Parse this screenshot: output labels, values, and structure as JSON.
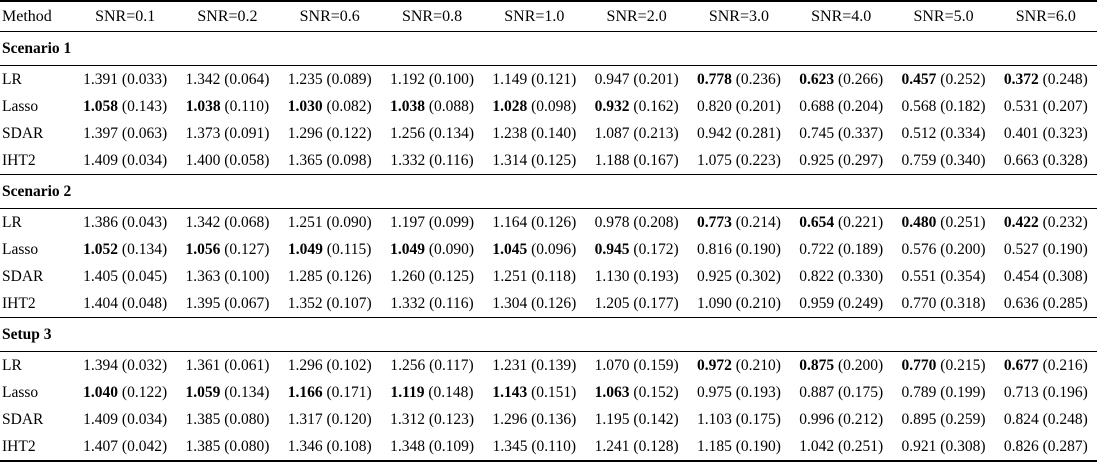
{
  "accent_colors": {
    "text": "#000000",
    "background": "#ffffff",
    "rule": "#000000"
  },
  "table": {
    "columns": [
      "Method",
      "SNR=0.1",
      "SNR=0.2",
      "SNR=0.6",
      "SNR=0.8",
      "SNR=1.0",
      "SNR=2.0",
      "SNR=3.0",
      "SNR=4.0",
      "SNR=5.0",
      "SNR=6.0"
    ],
    "sections": [
      {
        "title": "Scenario 1",
        "rows": [
          {
            "method": "LR",
            "cells": [
              {
                "mean": "1.391",
                "std": "(0.033)",
                "bold": false
              },
              {
                "mean": "1.342",
                "std": "(0.064)",
                "bold": false
              },
              {
                "mean": "1.235",
                "std": "(0.089)",
                "bold": false
              },
              {
                "mean": "1.192",
                "std": "(0.100)",
                "bold": false
              },
              {
                "mean": "1.149",
                "std": "(0.121)",
                "bold": false
              },
              {
                "mean": "0.947",
                "std": "(0.201)",
                "bold": false
              },
              {
                "mean": "0.778",
                "std": "(0.236)",
                "bold": true
              },
              {
                "mean": "0.623",
                "std": "(0.266)",
                "bold": true
              },
              {
                "mean": "0.457",
                "std": "(0.252)",
                "bold": true
              },
              {
                "mean": "0.372",
                "std": "(0.248)",
                "bold": true
              }
            ]
          },
          {
            "method": "Lasso",
            "cells": [
              {
                "mean": "1.058",
                "std": "(0.143)",
                "bold": true
              },
              {
                "mean": "1.038",
                "std": "(0.110)",
                "bold": true
              },
              {
                "mean": "1.030",
                "std": "(0.082)",
                "bold": true
              },
              {
                "mean": "1.038",
                "std": "(0.088)",
                "bold": true
              },
              {
                "mean": "1.028",
                "std": "(0.098)",
                "bold": true
              },
              {
                "mean": "0.932",
                "std": "(0.162)",
                "bold": true
              },
              {
                "mean": "0.820",
                "std": "(0.201)",
                "bold": false
              },
              {
                "mean": "0.688",
                "std": "(0.204)",
                "bold": false
              },
              {
                "mean": "0.568",
                "std": "(0.182)",
                "bold": false
              },
              {
                "mean": "0.531",
                "std": "(0.207)",
                "bold": false
              }
            ]
          },
          {
            "method": "SDAR",
            "cells": [
              {
                "mean": "1.397",
                "std": "(0.063)",
                "bold": false
              },
              {
                "mean": "1.373",
                "std": "(0.091)",
                "bold": false
              },
              {
                "mean": "1.296",
                "std": "(0.122)",
                "bold": false
              },
              {
                "mean": "1.256",
                "std": "(0.134)",
                "bold": false
              },
              {
                "mean": "1.238",
                "std": "(0.140)",
                "bold": false
              },
              {
                "mean": "1.087",
                "std": "(0.213)",
                "bold": false
              },
              {
                "mean": "0.942",
                "std": "(0.281)",
                "bold": false
              },
              {
                "mean": "0.745",
                "std": "(0.337)",
                "bold": false
              },
              {
                "mean": "0.512",
                "std": "(0.334)",
                "bold": false
              },
              {
                "mean": "0.401",
                "std": "(0.323)",
                "bold": false
              }
            ]
          },
          {
            "method": "IHT2",
            "cells": [
              {
                "mean": "1.409",
                "std": "(0.034)",
                "bold": false
              },
              {
                "mean": "1.400",
                "std": "(0.058)",
                "bold": false
              },
              {
                "mean": "1.365",
                "std": "(0.098)",
                "bold": false
              },
              {
                "mean": "1.332",
                "std": "(0.116)",
                "bold": false
              },
              {
                "mean": "1.314",
                "std": "(0.125)",
                "bold": false
              },
              {
                "mean": "1.188",
                "std": "(0.167)",
                "bold": false
              },
              {
                "mean": "1.075",
                "std": "(0.223)",
                "bold": false
              },
              {
                "mean": "0.925",
                "std": "(0.297)",
                "bold": false
              },
              {
                "mean": "0.759",
                "std": "(0.340)",
                "bold": false
              },
              {
                "mean": "0.663",
                "std": "(0.328)",
                "bold": false
              }
            ]
          }
        ]
      },
      {
        "title": "Scenario 2",
        "rows": [
          {
            "method": "LR",
            "cells": [
              {
                "mean": "1.386",
                "std": "(0.043)",
                "bold": false
              },
              {
                "mean": "1.342",
                "std": "(0.068)",
                "bold": false
              },
              {
                "mean": "1.251",
                "std": "(0.090)",
                "bold": false
              },
              {
                "mean": "1.197",
                "std": "(0.099)",
                "bold": false
              },
              {
                "mean": "1.164",
                "std": "(0.126)",
                "bold": false
              },
              {
                "mean": "0.978",
                "std": "(0.208)",
                "bold": false
              },
              {
                "mean": "0.773",
                "std": "(0.214)",
                "bold": true
              },
              {
                "mean": "0.654",
                "std": "(0.221)",
                "bold": true
              },
              {
                "mean": "0.480",
                "std": "(0.251)",
                "bold": true
              },
              {
                "mean": "0.422",
                "std": "(0.232)",
                "bold": true
              }
            ]
          },
          {
            "method": "Lasso",
            "cells": [
              {
                "mean": "1.052",
                "std": "(0.134)",
                "bold": true
              },
              {
                "mean": "1.056",
                "std": "(0.127)",
                "bold": true
              },
              {
                "mean": "1.049",
                "std": "(0.115)",
                "bold": true
              },
              {
                "mean": "1.049",
                "std": "(0.090)",
                "bold": true
              },
              {
                "mean": "1.045",
                "std": "(0.096)",
                "bold": true
              },
              {
                "mean": "0.945",
                "std": "(0.172)",
                "bold": true
              },
              {
                "mean": "0.816",
                "std": "(0.190)",
                "bold": false
              },
              {
                "mean": "0.722",
                "std": "(0.189)",
                "bold": false
              },
              {
                "mean": "0.576",
                "std": "(0.200)",
                "bold": false
              },
              {
                "mean": "0.527",
                "std": "(0.190)",
                "bold": false
              }
            ]
          },
          {
            "method": "SDAR",
            "cells": [
              {
                "mean": "1.405",
                "std": "(0.045)",
                "bold": false
              },
              {
                "mean": "1.363",
                "std": "(0.100)",
                "bold": false
              },
              {
                "mean": "1.285",
                "std": "(0.126)",
                "bold": false
              },
              {
                "mean": "1.260",
                "std": "(0.125)",
                "bold": false
              },
              {
                "mean": "1.251",
                "std": "(0.118)",
                "bold": false
              },
              {
                "mean": "1.130",
                "std": "(0.193)",
                "bold": false
              },
              {
                "mean": "0.925",
                "std": "(0.302)",
                "bold": false
              },
              {
                "mean": "0.822",
                "std": "(0.330)",
                "bold": false
              },
              {
                "mean": "0.551",
                "std": "(0.354)",
                "bold": false
              },
              {
                "mean": "0.454",
                "std": "(0.308)",
                "bold": false
              }
            ]
          },
          {
            "method": "IHT2",
            "cells": [
              {
                "mean": "1.404",
                "std": "(0.048)",
                "bold": false
              },
              {
                "mean": "1.395",
                "std": "(0.067)",
                "bold": false
              },
              {
                "mean": "1.352",
                "std": "(0.107)",
                "bold": false
              },
              {
                "mean": "1.332",
                "std": "(0.116)",
                "bold": false
              },
              {
                "mean": "1.304",
                "std": "(0.126)",
                "bold": false
              },
              {
                "mean": "1.205",
                "std": "(0.177)",
                "bold": false
              },
              {
                "mean": "1.090",
                "std": "(0.210)",
                "bold": false
              },
              {
                "mean": "0.959",
                "std": "(0.249)",
                "bold": false
              },
              {
                "mean": "0.770",
                "std": "(0.318)",
                "bold": false
              },
              {
                "mean": "0.636",
                "std": "(0.285)",
                "bold": false
              }
            ]
          }
        ]
      },
      {
        "title": "Setup 3",
        "rows": [
          {
            "method": "LR",
            "cells": [
              {
                "mean": "1.394",
                "std": "(0.032)",
                "bold": false
              },
              {
                "mean": "1.361",
                "std": "(0.061)",
                "bold": false
              },
              {
                "mean": "1.296",
                "std": "(0.102)",
                "bold": false
              },
              {
                "mean": "1.256",
                "std": "(0.117)",
                "bold": false
              },
              {
                "mean": "1.231",
                "std": "(0.139)",
                "bold": false
              },
              {
                "mean": "1.070",
                "std": "(0.159)",
                "bold": false
              },
              {
                "mean": "0.972",
                "std": "(0.210)",
                "bold": true
              },
              {
                "mean": "0.875",
                "std": "(0.200)",
                "bold": true
              },
              {
                "mean": "0.770",
                "std": "(0.215)",
                "bold": true
              },
              {
                "mean": "0.677",
                "std": "(0.216)",
                "bold": true
              }
            ]
          },
          {
            "method": "Lasso",
            "cells": [
              {
                "mean": "1.040",
                "std": "(0.122)",
                "bold": true
              },
              {
                "mean": "1.059",
                "std": "(0.134)",
                "bold": true
              },
              {
                "mean": "1.166",
                "std": "(0.171)",
                "bold": true
              },
              {
                "mean": "1.119",
                "std": "(0.148)",
                "bold": true
              },
              {
                "mean": "1.143",
                "std": "(0.151)",
                "bold": true
              },
              {
                "mean": "1.063",
                "std": "(0.152)",
                "bold": true
              },
              {
                "mean": "0.975",
                "std": "(0.193)",
                "bold": false
              },
              {
                "mean": "0.887",
                "std": "(0.175)",
                "bold": false
              },
              {
                "mean": "0.789",
                "std": "(0.199)",
                "bold": false
              },
              {
                "mean": "0.713",
                "std": "(0.196)",
                "bold": false
              }
            ]
          },
          {
            "method": "SDAR",
            "cells": [
              {
                "mean": "1.409",
                "std": "(0.034)",
                "bold": false
              },
              {
                "mean": "1.385",
                "std": "(0.080)",
                "bold": false
              },
              {
                "mean": "1.317",
                "std": "(0.120)",
                "bold": false
              },
              {
                "mean": "1.312",
                "std": "(0.123)",
                "bold": false
              },
              {
                "mean": "1.296",
                "std": "(0.136)",
                "bold": false
              },
              {
                "mean": "1.195",
                "std": "(0.142)",
                "bold": false
              },
              {
                "mean": "1.103",
                "std": "(0.175)",
                "bold": false
              },
              {
                "mean": "0.996",
                "std": "(0.212)",
                "bold": false
              },
              {
                "mean": "0.895",
                "std": "(0.259)",
                "bold": false
              },
              {
                "mean": "0.824",
                "std": "(0.248)",
                "bold": false
              }
            ]
          },
          {
            "method": "IHT2",
            "cells": [
              {
                "mean": "1.407",
                "std": "(0.042)",
                "bold": false
              },
              {
                "mean": "1.385",
                "std": "(0.080)",
                "bold": false
              },
              {
                "mean": "1.346",
                "std": "(0.108)",
                "bold": false
              },
              {
                "mean": "1.348",
                "std": "(0.109)",
                "bold": false
              },
              {
                "mean": "1.345",
                "std": "(0.110)",
                "bold": false
              },
              {
                "mean": "1.241",
                "std": "(0.128)",
                "bold": false
              },
              {
                "mean": "1.185",
                "std": "(0.190)",
                "bold": false
              },
              {
                "mean": "1.042",
                "std": "(0.251)",
                "bold": false
              },
              {
                "mean": "0.921",
                "std": "(0.308)",
                "bold": false
              },
              {
                "mean": "0.826",
                "std": "(0.287)",
                "bold": false
              }
            ]
          }
        ]
      }
    ]
  }
}
